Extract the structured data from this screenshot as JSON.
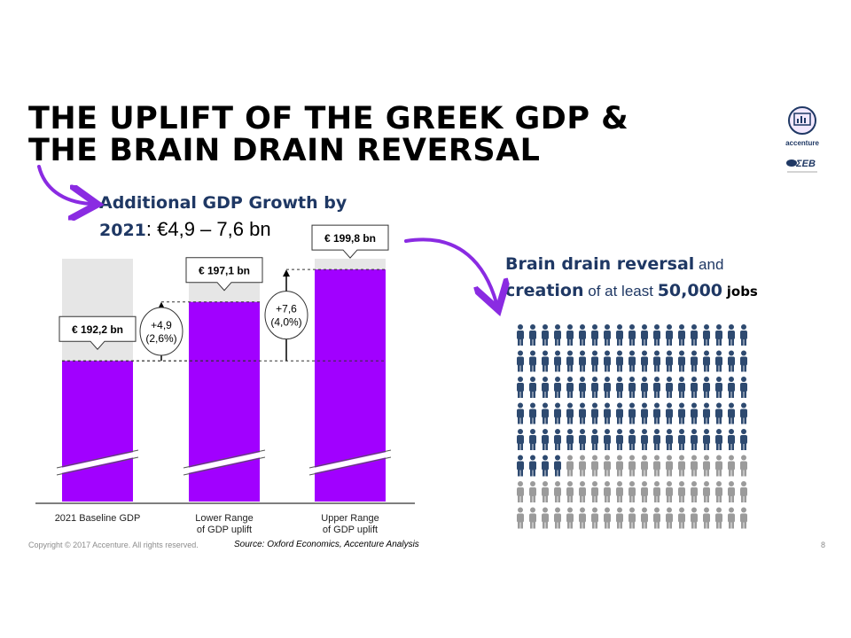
{
  "slide": {
    "title_line1": "THE UPLIFT OF THE GREEK GDP &",
    "title_line2": "THE BRAIN DRAIN REVERSAL",
    "logo_accenture": "accenture",
    "logo_seb": "ΣΕΒ",
    "copyright": "Copyright © 2017 Accenture. All rights reserved.",
    "source": "Source: Oxford Economics, Accenture Analysis",
    "page_number": "8"
  },
  "gdp_headline": {
    "part1": "Additional GDP Growth by",
    "part2": "2021",
    "part3": ": €4,9 – 7,6 bn"
  },
  "brain_headline": {
    "bold1": "Brain drain reversal",
    "small1": " and",
    "bold2": "creation",
    "small2": " of at least ",
    "bold3": "50,000",
    "small3": " ",
    "bold4": "jobs"
  },
  "colors": {
    "purple": "#a100ff",
    "grey_bar": "#e6e6e6",
    "navy": "#1f3864",
    "person_navy": "#2e4a70",
    "person_grey": "#9b9b9b",
    "arrow": "#8a2be2"
  },
  "chart_data": [
    {
      "type": "bar",
      "categories": [
        "2021 Baseline GDP",
        "Lower Range\nof GDP uplift",
        "Upper Range\nof GDP uplift"
      ],
      "values": [
        192.2,
        197.1,
        199.8
      ],
      "value_labels": [
        "€ 192,2 bn",
        "€ 197,1 bn",
        "€ 199,8 bn"
      ],
      "axis_break": true,
      "annotations": [
        {
          "from": "2021 Baseline GDP",
          "to": "Lower Range\nof GDP uplift",
          "value": 4.9,
          "pct": 2.6,
          "label1": "+4,9",
          "label2": "(2,6%)"
        },
        {
          "from": "2021 Baseline GDP",
          "to": "Upper Range\nof GDP uplift",
          "value": 7.6,
          "pct": 4.0,
          "label1": "+7,6",
          "label2": "(4,0%)"
        }
      ]
    },
    {
      "type": "pictograph",
      "rows": 8,
      "columns": 19,
      "total_icons": 152,
      "highlighted_icons": 99,
      "highlight_color": "#2e4a70",
      "base_color": "#9b9b9b"
    }
  ]
}
